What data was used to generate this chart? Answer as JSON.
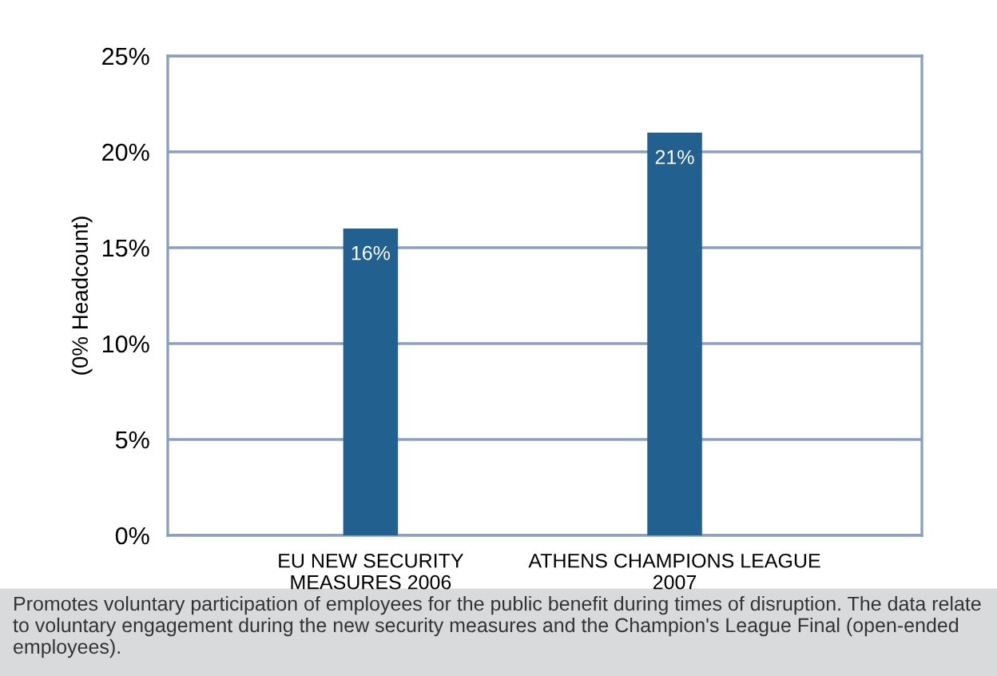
{
  "chart_data": {
    "type": "bar",
    "ylabel": "(0% Headcount)",
    "categories": [
      "EU NEW SECURITY\nMEASURES 2006",
      "ATHENS CHAMPIONS LEAGUE\n2007"
    ],
    "values": [
      16,
      21
    ],
    "color": "#22608f",
    "value_labels": [
      "16%",
      "21%"
    ],
    "ylim": [
      0,
      25
    ],
    "yticks": [
      {
        "value": 0,
        "label": "0%"
      },
      {
        "value": 5,
        "label": "5%"
      },
      {
        "value": 10,
        "label": "10%"
      },
      {
        "value": 15,
        "label": "15%"
      },
      {
        "value": 20,
        "label": "20%"
      },
      {
        "value": 25,
        "label": "25%"
      }
    ],
    "grid": "y",
    "legend": false,
    "annotations": [
      "Promotes voluntary participation of employees for the public benefit during times of disruption. The data relate to voluntary engagement during the new security measures and the Champion's League Final (open-ended employees)."
    ]
  }
}
